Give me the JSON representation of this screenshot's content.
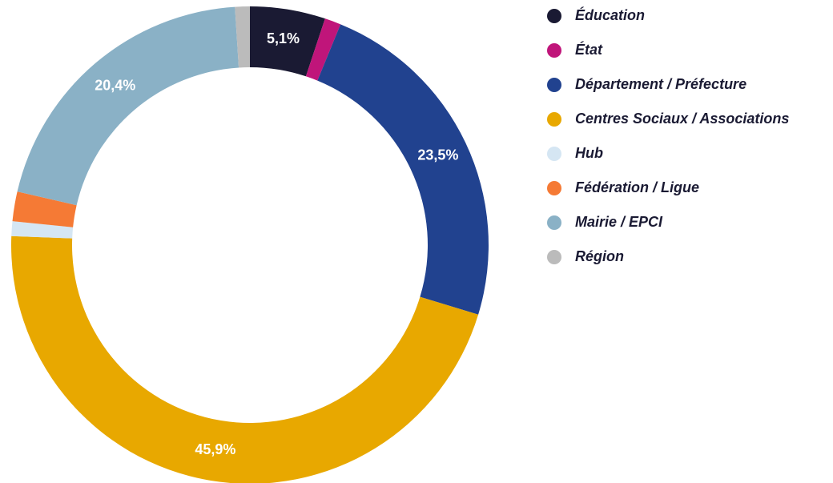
{
  "chart_data": {
    "type": "donut",
    "categories": [
      "Éducation",
      "État",
      "Département / Préfecture",
      "Centres Sociaux / Associations",
      "Hub",
      "Fédération / Ligue",
      "Mairie / EPCI",
      "Région"
    ],
    "values": [
      5.1,
      1.1,
      23.5,
      45.9,
      1.0,
      2.0,
      20.4,
      1.0
    ],
    "value_labels": [
      "5,1%",
      null,
      "23,5%",
      "45,9%",
      null,
      null,
      "20,4%",
      null
    ],
    "colors": [
      "#1a1a33",
      "#c0157a",
      "#21428f",
      "#e8a800",
      "#d5e6f3",
      "#f57a35",
      "#8ab1c6",
      "#bbbbbb"
    ]
  }
}
